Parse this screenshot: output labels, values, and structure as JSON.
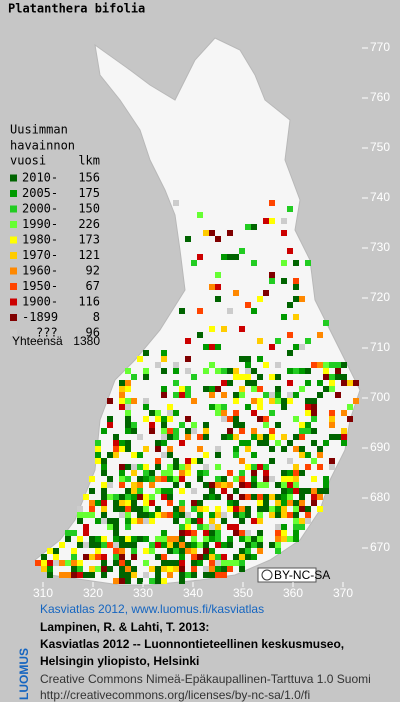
{
  "title": "Platanthera bifolia",
  "legend": {
    "heading": [
      "Uusimman",
      "havainnon"
    ],
    "year_header": "vuosi",
    "count_header": "lkm",
    "items": [
      {
        "label": "2010-",
        "count": 156,
        "color": "#006400"
      },
      {
        "label": "2005-",
        "count": 175,
        "color": "#009a00"
      },
      {
        "label": "2000-",
        "count": 150,
        "color": "#22cc22"
      },
      {
        "label": "1990-",
        "count": 226,
        "color": "#66ff33"
      },
      {
        "label": "1980-",
        "count": 173,
        "color": "#ffff00"
      },
      {
        "label": "1970-",
        "count": 121,
        "color": "#ffcc00"
      },
      {
        "label": "1960-",
        "count": 92,
        "color": "#ff8800"
      },
      {
        "label": "1950-",
        "count": 67,
        "color": "#ff4400"
      },
      {
        "label": "1900-",
        "count": 116,
        "color": "#cc0000"
      },
      {
        "label": "-1899",
        "count": 8,
        "color": "#800000"
      },
      {
        "label": "???",
        "count": 96,
        "color": "#cccccc"
      }
    ],
    "total_label": "Yhteensä",
    "total": 1380
  },
  "map": {
    "yticks": [
      770,
      760,
      750,
      740,
      730,
      720,
      710,
      700,
      690,
      680,
      670
    ],
    "xticks": [
      310,
      320,
      330,
      340,
      350,
      360,
      370
    ]
  },
  "badge": "BY-NC-SA",
  "logo": "LUOMUS",
  "credits": {
    "site": "Kasviatlas 2012, www.luomus.fi/kasviatlas",
    "citation": [
      "Lampinen, R. & Lahti, T. 2013:",
      "Kasviatlas 2012 -- Luonnontieteellinen keskusmuseo,",
      "Helsingin yliopisto, Helsinki"
    ],
    "license": [
      "Creative Commons Nimeä-Epäkaupallinen-Tarttuva 1.0 Suomi",
      "http://creativecommons.org/licenses/by-nc-sa/1.0/fi"
    ]
  }
}
